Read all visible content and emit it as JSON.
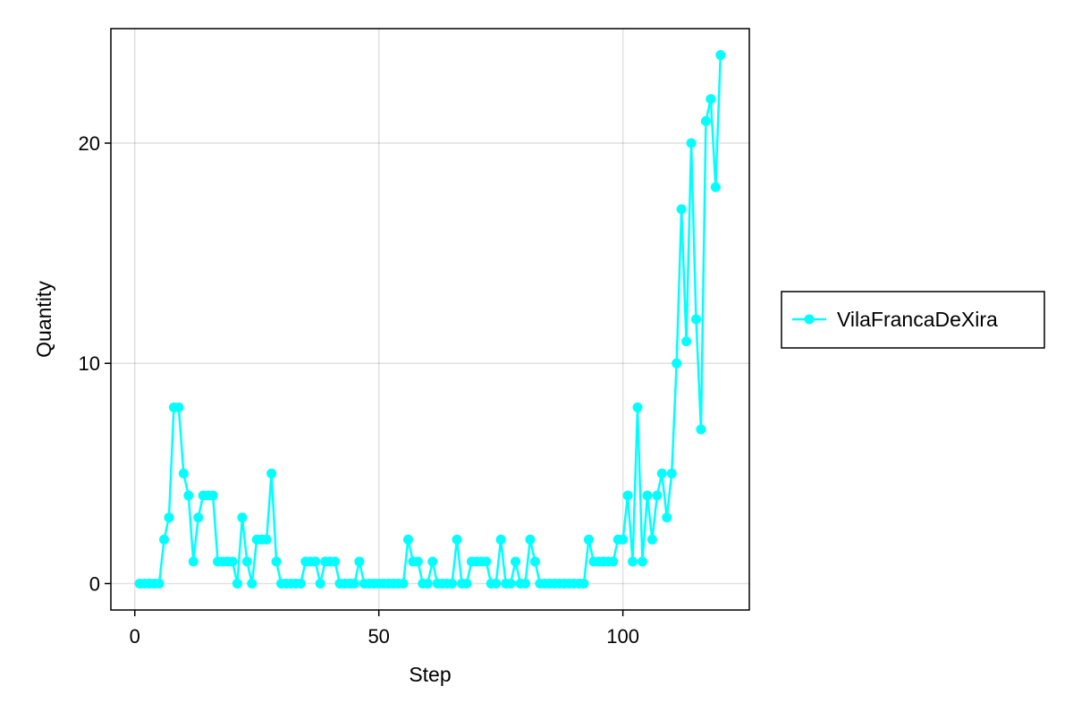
{
  "chart_data": {
    "type": "line",
    "title": "",
    "xlabel": "Step",
    "ylabel": "Quantity",
    "xlim": [
      -4.9,
      125.9
    ],
    "ylim": [
      -1.2,
      25.2
    ],
    "xticks": [
      0,
      50,
      100
    ],
    "yticks": [
      0,
      10,
      20
    ],
    "grid": true,
    "legend_position": "right",
    "series": [
      {
        "name": "VilaFrancaDeXira",
        "color": "#00FFFF",
        "marker": "circle",
        "x": [
          1,
          2,
          3,
          4,
          5,
          6,
          7,
          8,
          9,
          10,
          11,
          12,
          13,
          14,
          15,
          16,
          17,
          18,
          19,
          20,
          21,
          22,
          23,
          24,
          25,
          26,
          27,
          28,
          29,
          30,
          31,
          32,
          33,
          34,
          35,
          36,
          37,
          38,
          39,
          40,
          41,
          42,
          43,
          44,
          45,
          46,
          47,
          48,
          49,
          50,
          51,
          52,
          53,
          54,
          55,
          56,
          57,
          58,
          59,
          60,
          61,
          62,
          63,
          64,
          65,
          66,
          67,
          68,
          69,
          70,
          71,
          72,
          73,
          74,
          75,
          76,
          77,
          78,
          79,
          80,
          81,
          82,
          83,
          84,
          85,
          86,
          87,
          88,
          89,
          90,
          91,
          92,
          93,
          94,
          95,
          96,
          97,
          98,
          99,
          100,
          101,
          102,
          103,
          104,
          105,
          106,
          107,
          108,
          109,
          110,
          111,
          112,
          113,
          114,
          115,
          116,
          117,
          118,
          119,
          120
        ],
        "y": [
          0,
          0,
          0,
          0,
          0,
          2,
          3,
          8,
          8,
          5,
          4,
          1,
          3,
          4,
          4,
          4,
          1,
          1,
          1,
          1,
          0,
          3,
          1,
          0,
          2,
          2,
          2,
          5,
          1,
          0,
          0,
          0,
          0,
          0,
          1,
          1,
          1,
          0,
          1,
          1,
          1,
          0,
          0,
          0,
          0,
          1,
          0,
          0,
          0,
          0,
          0,
          0,
          0,
          0,
          0,
          2,
          1,
          1,
          0,
          0,
          1,
          0,
          0,
          0,
          0,
          2,
          0,
          0,
          1,
          1,
          1,
          1,
          0,
          0,
          2,
          0,
          0,
          1,
          0,
          0,
          2,
          1,
          0,
          0,
          0,
          0,
          0,
          0,
          0,
          0,
          0,
          0,
          2,
          1,
          1,
          1,
          1,
          1,
          2,
          2,
          4,
          1,
          8,
          1,
          4,
          2,
          4,
          5,
          3,
          5,
          10,
          17,
          11,
          20,
          12,
          7,
          21,
          22,
          18,
          24
        ]
      }
    ]
  }
}
